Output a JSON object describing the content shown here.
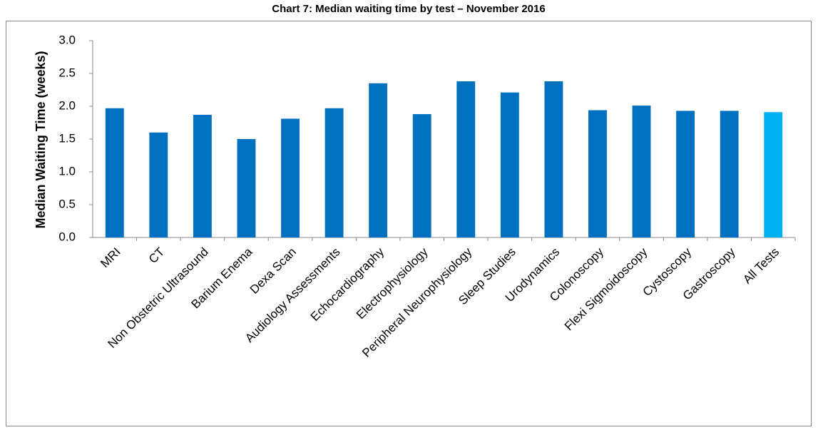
{
  "chart_data": {
    "type": "bar",
    "title": "Chart 7: Median waiting time by test – November 2016",
    "y_label": "Median Waiting Time (weeks)",
    "categories": [
      "MRI",
      "CT",
      "Non Obstetric Ultrasound",
      "Barium Enema",
      "Dexa Scan",
      "Audiology Assessments",
      "Echocardiography",
      "Electrophysiology",
      "Peripheral Neurophysiology",
      "Sleep Studies",
      "Urodynamics",
      "Colonoscopy",
      "Flexi Sigmoidoscopy",
      "Cystoscopy",
      "Gastroscopy",
      "All Tests"
    ],
    "values": [
      1.97,
      1.6,
      1.87,
      1.5,
      1.81,
      1.97,
      2.35,
      1.88,
      2.38,
      2.21,
      2.38,
      1.94,
      2.01,
      1.93,
      1.93,
      1.91
    ],
    "colors": [
      "#0070c0",
      "#0070c0",
      "#0070c0",
      "#0070c0",
      "#0070c0",
      "#0070c0",
      "#0070c0",
      "#0070c0",
      "#0070c0",
      "#0070c0",
      "#0070c0",
      "#0070c0",
      "#0070c0",
      "#0070c0",
      "#0070c0",
      "#00b0f0"
    ],
    "ylim": [
      0,
      3
    ],
    "yticks": [
      {
        "value": 0,
        "label": "0.0"
      },
      0.5,
      {
        "value": 1,
        "label": "1.0"
      },
      1.5,
      {
        "value": 2,
        "label": "2.0"
      },
      2.5,
      {
        "value": 3,
        "label": "3.0"
      }
    ],
    "grid": false
  }
}
